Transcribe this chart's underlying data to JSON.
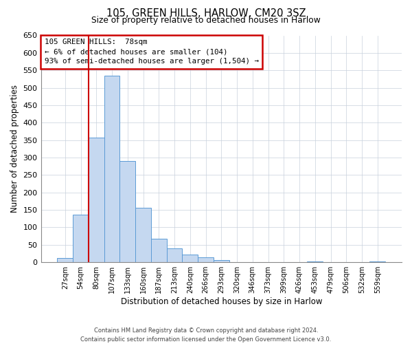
{
  "title": "105, GREEN HILLS, HARLOW, CM20 3SZ",
  "subtitle": "Size of property relative to detached houses in Harlow",
  "xlabel": "Distribution of detached houses by size in Harlow",
  "ylabel": "Number of detached properties",
  "bar_labels": [
    "27sqm",
    "54sqm",
    "80sqm",
    "107sqm",
    "133sqm",
    "160sqm",
    "187sqm",
    "213sqm",
    "240sqm",
    "266sqm",
    "293sqm",
    "320sqm",
    "346sqm",
    "373sqm",
    "399sqm",
    "426sqm",
    "453sqm",
    "479sqm",
    "506sqm",
    "532sqm",
    "559sqm"
  ],
  "bar_heights": [
    12,
    137,
    358,
    535,
    290,
    157,
    67,
    40,
    22,
    15,
    7,
    0,
    0,
    0,
    0,
    0,
    2,
    0,
    0,
    0,
    2
  ],
  "bar_color": "#c5d8f0",
  "bar_edge_color": "#5b9bd5",
  "ylim": [
    0,
    650
  ],
  "yticks": [
    0,
    50,
    100,
    150,
    200,
    250,
    300,
    350,
    400,
    450,
    500,
    550,
    600,
    650
  ],
  "vline_color": "#cc0000",
  "vline_pos": 1.5,
  "annotation_title": "105 GREEN HILLS:  78sqm",
  "annotation_line1": "← 6% of detached houses are smaller (104)",
  "annotation_line2": "93% of semi-detached houses are larger (1,504) →",
  "annotation_box_color": "#cc0000",
  "footer_line1": "Contains HM Land Registry data © Crown copyright and database right 2024.",
  "footer_line2": "Contains public sector information licensed under the Open Government Licence v3.0.",
  "bg_color": "#ffffff",
  "grid_color": "#c8d0dc"
}
